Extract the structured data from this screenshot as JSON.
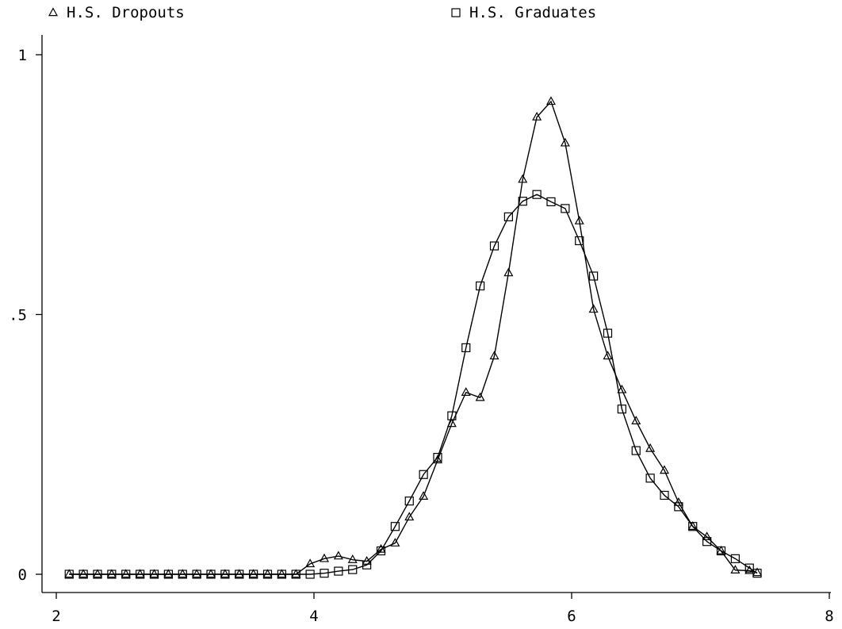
{
  "chart_data": {
    "type": "line",
    "title": "",
    "xlabel": "",
    "ylabel": "",
    "xlim": [
      2,
      8
    ],
    "ylim": [
      0,
      1
    ],
    "x_ticks": [
      2,
      4,
      6,
      8
    ],
    "x_tick_labels": [
      "2",
      "4",
      "6",
      "8"
    ],
    "y_ticks": [
      0,
      0.5,
      1
    ],
    "y_tick_labels": [
      "0",
      ".5",
      "1"
    ],
    "grid": false,
    "legend_position": "top",
    "series": [
      {
        "name": "H.S. Dropouts",
        "marker": "triangle",
        "x": [
          2.1,
          2.21,
          2.32,
          2.43,
          2.54,
          2.65,
          2.76,
          2.87,
          2.98,
          3.09,
          3.2,
          3.31,
          3.42,
          3.53,
          3.64,
          3.75,
          3.86,
          3.97,
          4.08,
          4.19,
          4.3,
          4.41,
          4.52,
          4.63,
          4.74,
          4.85,
          4.96,
          5.07,
          5.18,
          5.29,
          5.4,
          5.51,
          5.62,
          5.73,
          5.84,
          5.95,
          6.06,
          6.17,
          6.28,
          6.39,
          6.5,
          6.61,
          6.72,
          6.83,
          6.94,
          7.05,
          7.16,
          7.27,
          7.38,
          7.44
        ],
        "values": [
          0,
          0,
          0,
          0,
          0,
          0,
          0,
          0,
          0,
          0,
          0,
          0,
          0,
          0,
          0,
          0,
          0,
          0.02,
          0.03,
          0.035,
          0.028,
          0.025,
          0.048,
          0.06,
          0.11,
          0.15,
          0.22,
          0.29,
          0.35,
          0.34,
          0.42,
          0.58,
          0.76,
          0.88,
          0.91,
          0.83,
          0.68,
          0.51,
          0.42,
          0.355,
          0.295,
          0.242,
          0.2,
          0.138,
          0.092,
          0.072,
          0.045,
          0.008,
          0.007,
          0.003
        ]
      },
      {
        "name": "H.S. Graduates",
        "marker": "square",
        "x": [
          2.1,
          2.21,
          2.32,
          2.43,
          2.54,
          2.65,
          2.76,
          2.87,
          2.98,
          3.09,
          3.2,
          3.31,
          3.42,
          3.53,
          3.64,
          3.75,
          3.86,
          3.97,
          4.08,
          4.19,
          4.3,
          4.41,
          4.52,
          4.63,
          4.74,
          4.85,
          4.96,
          5.07,
          5.18,
          5.29,
          5.4,
          5.51,
          5.62,
          5.73,
          5.84,
          5.95,
          6.06,
          6.17,
          6.28,
          6.39,
          6.5,
          6.61,
          6.72,
          6.83,
          6.94,
          7.05,
          7.16,
          7.27,
          7.38,
          7.44
        ],
        "values": [
          0,
          0,
          0,
          0,
          0,
          0,
          0,
          0,
          0,
          0,
          0,
          0,
          0,
          0,
          0,
          0,
          0,
          0,
          0.002,
          0.006,
          0.009,
          0.018,
          0.045,
          0.092,
          0.141,
          0.192,
          0.225,
          0.305,
          0.436,
          0.555,
          0.632,
          0.688,
          0.718,
          0.731,
          0.717,
          0.704,
          0.642,
          0.574,
          0.464,
          0.318,
          0.238,
          0.185,
          0.152,
          0.13,
          0.092,
          0.063,
          0.045,
          0.03,
          0.012,
          0.002
        ]
      }
    ]
  }
}
